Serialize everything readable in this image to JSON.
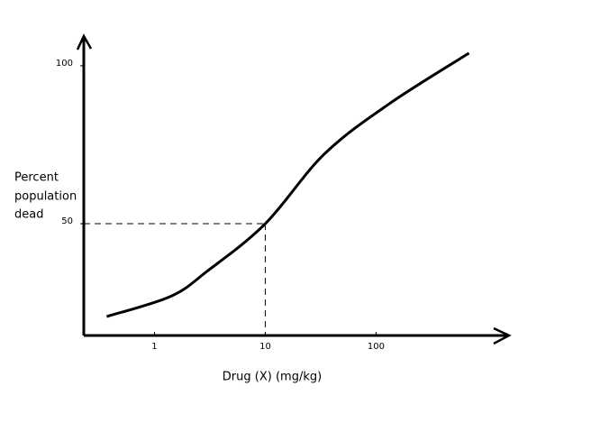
{
  "chart_data": {
    "type": "line",
    "xlabel": "Drug (X) (mg/kg)",
    "ylabel": [
      "Percent",
      "population",
      "dead"
    ],
    "log_x": true,
    "xlim": [
      0.23,
      1585
    ],
    "ylim": [
      14.6,
      109.4
    ],
    "xticks": [
      1,
      10,
      100
    ],
    "yticks": [
      50,
      100
    ],
    "x": [
      0.37,
      1.4,
      3.0,
      10,
      34,
      132,
      690
    ],
    "values": [
      20.6,
      27,
      35,
      50,
      72,
      88,
      104
    ],
    "color": "#000000",
    "reference": {
      "x": 10,
      "y": 50
    }
  }
}
